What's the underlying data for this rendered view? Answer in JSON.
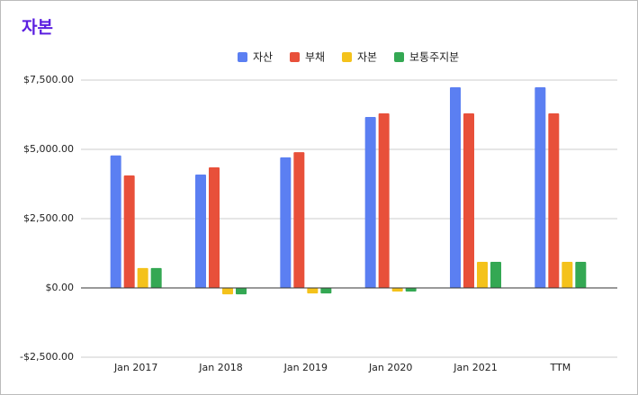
{
  "chart_data": {
    "type": "bar",
    "title": "자본",
    "categories": [
      "Jan 2017",
      "Jan 2018",
      "Jan 2019",
      "Jan 2020",
      "Jan 2021",
      "TTM"
    ],
    "series": [
      {
        "name": "자산",
        "color": "#5b7ff2",
        "values": [
          4780,
          4090,
          4710,
          6170,
          7240,
          7240
        ]
      },
      {
        "name": "부채",
        "color": "#e8503a",
        "values": [
          4060,
          4350,
          4900,
          6300,
          6300,
          6300
        ]
      },
      {
        "name": "자본",
        "color": "#f4c21b",
        "values": [
          720,
          -230,
          -200,
          -130,
          940,
          940
        ]
      },
      {
        "name": "보통주지분",
        "color": "#34a853",
        "values": [
          720,
          -230,
          -200,
          -130,
          940,
          940
        ]
      }
    ],
    "ylim": [
      -2500,
      7500
    ],
    "yticks": [
      {
        "value": -2500,
        "label": "-$2,500.00"
      },
      {
        "value": 0,
        "label": "$0.00"
      },
      {
        "value": 2500,
        "label": "$2,500.00"
      },
      {
        "value": 5000,
        "label": "$5,000.00"
      },
      {
        "value": 7500,
        "label": "$7,500.00"
      }
    ],
    "grid": true,
    "legend": "top"
  }
}
